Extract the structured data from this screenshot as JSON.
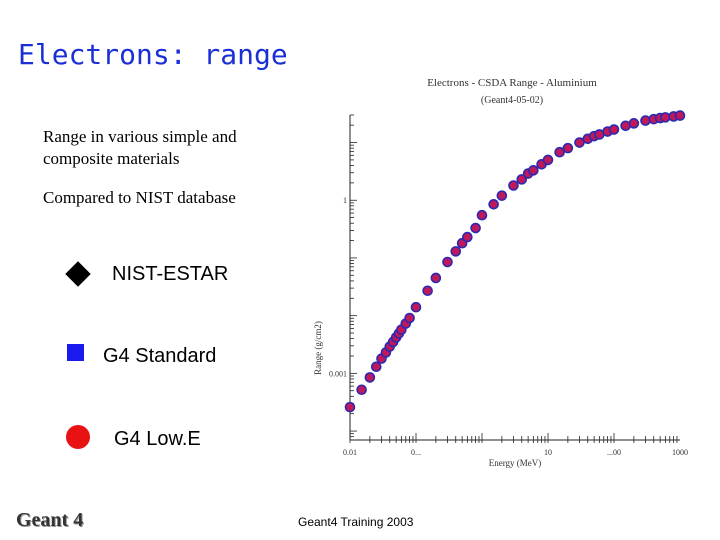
{
  "slide": {
    "title": "Electrons: range",
    "bullets": [
      "Range in various simple and composite materials",
      "Compared to NIST database"
    ],
    "legend": [
      {
        "label": "NIST-ESTAR",
        "marker": "diamond",
        "color": "#000000"
      },
      {
        "label": "G4 Standard",
        "marker": "square",
        "color": "#1a1aee"
      },
      {
        "label": "G4 Low.E",
        "marker": "circle",
        "color": "#e81212"
      }
    ],
    "footer": "Geant4 Training 2003",
    "logo": "Geant 4"
  },
  "chart_data": {
    "type": "scatter",
    "title": "Electrons - CSDA Range - Aluminium",
    "subtitle": "(Geant4-05-02)",
    "xlabel": "Energy (MeV)",
    "ylabel": "Range (g/cm2)",
    "xscale": "log",
    "yscale": "log",
    "xlim": [
      0.01,
      1000
    ],
    "ylim": [
      7e-05,
      30
    ],
    "x_ticks": [
      "0.01",
      "0...",
      "10",
      "...00",
      "1000"
    ],
    "y_ticks": [
      "1",
      "0.001"
    ],
    "marker_fill": "#c0185a",
    "marker_stroke": "#2a2ab0",
    "points": [
      [
        0.01,
        0.00026
      ],
      [
        0.015,
        0.00052
      ],
      [
        0.02,
        0.00085
      ],
      [
        0.025,
        0.0013
      ],
      [
        0.03,
        0.0018
      ],
      [
        0.035,
        0.0023
      ],
      [
        0.04,
        0.0029
      ],
      [
        0.045,
        0.0035
      ],
      [
        0.05,
        0.0042
      ],
      [
        0.055,
        0.0049
      ],
      [
        0.06,
        0.0057
      ],
      [
        0.07,
        0.0073
      ],
      [
        0.08,
        0.0091
      ],
      [
        0.1,
        0.014
      ],
      [
        0.15,
        0.027
      ],
      [
        0.2,
        0.045
      ],
      [
        0.3,
        0.085
      ],
      [
        0.4,
        0.13
      ],
      [
        0.5,
        0.18
      ],
      [
        0.6,
        0.23
      ],
      [
        0.8,
        0.33
      ],
      [
        1,
        0.55
      ],
      [
        1.5,
        0.85
      ],
      [
        2,
        1.2
      ],
      [
        3,
        1.8
      ],
      [
        4,
        2.3
      ],
      [
        5,
        2.9
      ],
      [
        6,
        3.3
      ],
      [
        8,
        4.2
      ],
      [
        10,
        5.0
      ],
      [
        15,
        6.8
      ],
      [
        20,
        8.0
      ],
      [
        30,
        10.0
      ],
      [
        40,
        11.6
      ],
      [
        50,
        12.9
      ],
      [
        60,
        13.8
      ],
      [
        80,
        15.5
      ],
      [
        100,
        16.8
      ],
      [
        150,
        19.5
      ],
      [
        200,
        21.5
      ],
      [
        300,
        24.0
      ],
      [
        400,
        25.4
      ],
      [
        500,
        26.5
      ],
      [
        600,
        27.3
      ],
      [
        800,
        28.3
      ],
      [
        1000,
        29.3
      ]
    ]
  }
}
